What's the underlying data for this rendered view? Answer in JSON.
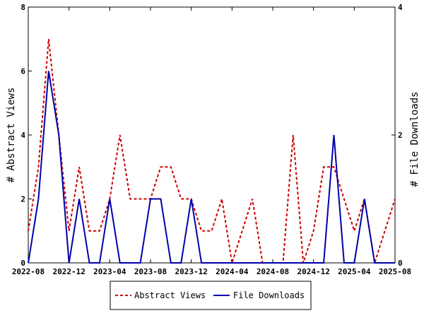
{
  "chart_data": {
    "type": "line",
    "x": [
      "2022-08",
      "2022-09",
      "2022-10",
      "2022-11",
      "2022-12",
      "2023-01",
      "2023-02",
      "2023-03",
      "2023-04",
      "2023-05",
      "2023-06",
      "2023-07",
      "2023-08",
      "2023-09",
      "2023-10",
      "2023-11",
      "2023-12",
      "2024-01",
      "2024-02",
      "2024-03",
      "2024-04",
      "2024-05",
      "2024-06",
      "2024-07",
      "2024-08",
      "2024-09",
      "2024-10",
      "2024-11",
      "2024-12",
      "2025-01",
      "2025-02",
      "2025-03",
      "2025-04",
      "2025-05",
      "2025-06",
      "2025-07",
      "2025-08"
    ],
    "x_tick_labels": [
      "2022-08",
      "2022-12",
      "2023-04",
      "2023-08",
      "2023-12",
      "2024-04",
      "2024-08",
      "2024-12",
      "2025-04",
      "2025-08"
    ],
    "series": [
      {
        "name": "Abstract Views",
        "axis": "left",
        "color": "#cc0000",
        "style": "dashed",
        "values": [
          1,
          3,
          7,
          4,
          1,
          3,
          1,
          1,
          2,
          4,
          2,
          2,
          2,
          3,
          3,
          2,
          2,
          1,
          1,
          2,
          0,
          1,
          2,
          0,
          0,
          0,
          4,
          0,
          1,
          3,
          3,
          2,
          1,
          2,
          0,
          1,
          2
        ]
      },
      {
        "name": "File Downloads",
        "axis": "right",
        "color": "#0000aa",
        "style": "solid",
        "values": [
          0,
          1,
          3,
          2,
          0,
          1,
          0,
          0,
          1,
          0,
          0,
          0,
          1,
          1,
          0,
          0,
          1,
          0,
          0,
          0,
          0,
          0,
          0,
          0,
          0,
          0,
          0,
          0,
          0,
          0,
          2,
          0,
          0,
          1,
          0,
          0,
          0
        ]
      }
    ],
    "ylabel_left": "# Abstract Views",
    "ylabel_right": "# File Downloads",
    "ylim_left": [
      0,
      8
    ],
    "ylim_right": [
      0,
      4
    ],
    "yticks_left": [
      "0",
      "2",
      "4",
      "6",
      "8"
    ],
    "yticks_right": [
      "0",
      "2",
      "4"
    ],
    "grid": false,
    "legend_position": "bottom-center",
    "legend": [
      "Abstract Views",
      "File Downloads"
    ]
  }
}
